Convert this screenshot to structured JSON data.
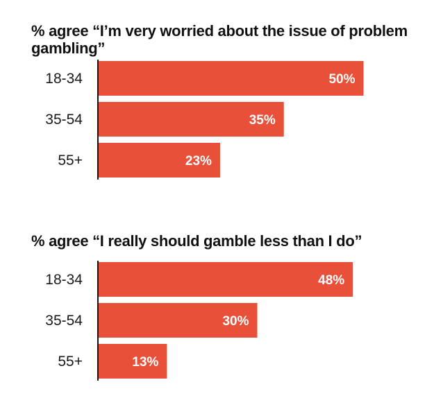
{
  "chart_data": [
    {
      "type": "bar",
      "orientation": "horizontal",
      "title": "% agree “I’m very worried about the issue of problem gambling”",
      "categories": [
        "18-34",
        "35-54",
        "55+"
      ],
      "values": [
        50,
        35,
        23
      ],
      "value_labels": [
        "50%",
        "35%",
        "23%"
      ],
      "xlabel": "",
      "ylabel": "",
      "xlim": [
        0,
        100
      ],
      "grid": false,
      "bar_color": "#e8503a"
    },
    {
      "type": "bar",
      "orientation": "horizontal",
      "title": "% agree “I really should gamble less than I do”",
      "categories": [
        "18-34",
        "35-54",
        "55+"
      ],
      "values": [
        48,
        30,
        13
      ],
      "value_labels": [
        "48%",
        "30%",
        "13%"
      ],
      "xlabel": "",
      "ylabel": "",
      "xlim": [
        0,
        100
      ],
      "grid": false,
      "bar_color": "#e8503a"
    }
  ],
  "colors": {
    "bar": "#e8503a",
    "axis": "#111111",
    "value_text": "#ffffff"
  }
}
